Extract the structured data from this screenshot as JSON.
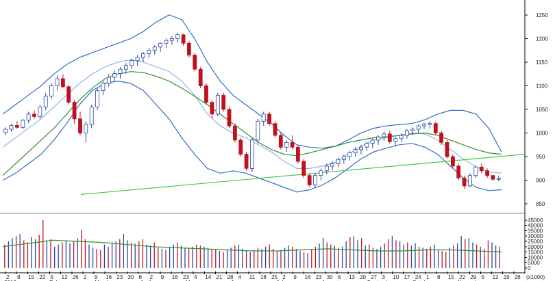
{
  "chart_data": [
    {
      "type": "candlestick",
      "title": "",
      "xlabel": "",
      "ylabel": "",
      "ylim": [
        830,
        1270
      ],
      "grid": false,
      "legend": "none",
      "price_ticks": [
        "850",
        "900",
        "950",
        "1000",
        "1050",
        "1100",
        "1150",
        "1200",
        "1250"
      ],
      "day_ticks": [
        "2",
        "8",
        "15",
        "22",
        "5",
        "12",
        "26",
        "2",
        "9",
        "16",
        "23",
        "30",
        "6",
        "2",
        "9",
        "16",
        "23",
        "4",
        "14",
        "21",
        "28",
        "4",
        "11",
        "18",
        "25",
        "2",
        "9",
        "16",
        "23",
        "30",
        "6",
        "13",
        "20",
        "27",
        "3",
        "10",
        "17",
        "24",
        "1",
        "8",
        "15",
        "22",
        "29",
        "5",
        "12",
        "19",
        "26"
      ],
      "month_labels": [
        "2018",
        "February",
        "March",
        "April",
        "May",
        "June",
        "July",
        "August",
        "September",
        "October",
        "November"
      ],
      "colors": {
        "up": "#2246a0",
        "down": "#c0121e",
        "bollinger_upper": "#2e6bc6",
        "bollinger_lower": "#2e6bc6",
        "bollinger_mid": "#7aa6e0",
        "moving_average": "#2f8f2f",
        "trendline": "#44c944"
      },
      "series": [
        {
          "role": "price",
          "ohlc": [
            [
              1001,
              1012,
              995,
              1008
            ],
            [
              1008,
              1020,
              1003,
              1016
            ],
            [
              1016,
              1025,
              1009,
              1012
            ],
            [
              1012,
              1030,
              1008,
              1027
            ],
            [
              1027,
              1045,
              1021,
              1040
            ],
            [
              1040,
              1048,
              1030,
              1035
            ],
            [
              1035,
              1060,
              1030,
              1055
            ],
            [
              1055,
              1085,
              1048,
              1078
            ],
            [
              1078,
              1105,
              1072,
              1100
            ],
            [
              1100,
              1122,
              1090,
              1115
            ],
            [
              1115,
              1125,
              1095,
              1098
            ],
            [
              1098,
              1102,
              1060,
              1065
            ],
            [
              1065,
              1070,
              1020,
              1030
            ],
            [
              1030,
              1045,
              995,
              1000
            ],
            [
              1000,
              1025,
              980,
              1018
            ],
            [
              1018,
              1060,
              1010,
              1055
            ],
            [
              1055,
              1095,
              1048,
              1090
            ],
            [
              1090,
              1110,
              1080,
              1105
            ],
            [
              1105,
              1125,
              1098,
              1118
            ],
            [
              1118,
              1132,
              1108,
              1126
            ],
            [
              1126,
              1140,
              1115,
              1135
            ],
            [
              1135,
              1148,
              1125,
              1143
            ],
            [
              1143,
              1158,
              1135,
              1153
            ],
            [
              1153,
              1165,
              1142,
              1160
            ],
            [
              1160,
              1172,
              1150,
              1168
            ],
            [
              1168,
              1180,
              1158,
              1175
            ],
            [
              1175,
              1186,
              1166,
              1182
            ],
            [
              1182,
              1192,
              1172,
              1190
            ],
            [
              1190,
              1200,
              1180,
              1196
            ],
            [
              1196,
              1205,
              1186,
              1200
            ],
            [
              1200,
              1212,
              1192,
              1208
            ],
            [
              1208,
              1210,
              1185,
              1190
            ],
            [
              1190,
              1195,
              1160,
              1165
            ],
            [
              1165,
              1170,
              1130,
              1135
            ],
            [
              1135,
              1140,
              1095,
              1100
            ],
            [
              1100,
              1105,
              1060,
              1065
            ],
            [
              1065,
              1070,
              1030,
              1040
            ],
            [
              1040,
              1085,
              1035,
              1080
            ],
            [
              1080,
              1085,
              1045,
              1050
            ],
            [
              1050,
              1055,
              1010,
              1015
            ],
            [
              1015,
              1020,
              980,
              985
            ],
            [
              985,
              990,
              950,
              955
            ],
            [
              955,
              960,
              920,
              925
            ],
            [
              925,
              990,
              918,
              985
            ],
            [
              985,
              1030,
              978,
              1025
            ],
            [
              1025,
              1045,
              1015,
              1040
            ],
            [
              1040,
              1045,
              1015,
              1020
            ],
            [
              1020,
              1025,
              990,
              995
            ],
            [
              995,
              1000,
              965,
              970
            ],
            [
              970,
              985,
              960,
              980
            ],
            [
              980,
              995,
              965,
              970
            ],
            [
              970,
              975,
              935,
              940
            ],
            [
              940,
              945,
              905,
              910
            ],
            [
              910,
              915,
              885,
              890
            ],
            [
              890,
              915,
              885,
              910
            ],
            [
              910,
              925,
              900,
              920
            ],
            [
              920,
              935,
              912,
              930
            ],
            [
              930,
              940,
              922,
              935
            ],
            [
              935,
              948,
              928,
              944
            ],
            [
              944,
              955,
              935,
              950
            ],
            [
              950,
              962,
              942,
              958
            ],
            [
              958,
              970,
              950,
              965
            ],
            [
              965,
              975,
              955,
              970
            ],
            [
              970,
              982,
              962,
              978
            ],
            [
              978,
              988,
              968,
              985
            ],
            [
              985,
              995,
              975,
              992
            ],
            [
              992,
              1003,
              983,
              998
            ],
            [
              998,
              1005,
              978,
              982
            ],
            [
              982,
              992,
              972,
              988
            ],
            [
              988,
              1000,
              980,
              995
            ],
            [
              995,
              1008,
              988,
              1005
            ],
            [
              1005,
              1012,
              995,
              1008
            ],
            [
              1008,
              1018,
              1000,
              1015
            ],
            [
              1015,
              1022,
              1008,
              1018
            ],
            [
              1018,
              1025,
              1010,
              1020
            ],
            [
              1020,
              1024,
              995,
              1000
            ],
            [
              1000,
              1005,
              975,
              980
            ],
            [
              980,
              985,
              945,
              950
            ],
            [
              950,
              955,
              925,
              930
            ],
            [
              930,
              935,
              900,
              905
            ],
            [
              905,
              910,
              882,
              888
            ],
            [
              888,
              915,
              885,
              910
            ],
            [
              910,
              932,
              905,
              928
            ],
            [
              928,
              935,
              915,
              920
            ],
            [
              920,
              925,
              905,
              910
            ],
            [
              910,
              912,
              898,
              902
            ],
            [
              902,
              910,
              898,
              904
            ]
          ]
        },
        {
          "role": "bollinger-upper",
          "values": [
            1040,
            1060,
            1080,
            1100,
            1125,
            1145,
            1160,
            1170,
            1180,
            1190,
            1200,
            1215,
            1235,
            1250,
            1240,
            1200,
            1150,
            1110,
            1080,
            1060,
            1040,
            1020,
            995,
            975,
            970,
            968,
            972,
            985,
            1000,
            1010,
            1015,
            1018,
            1020,
            1028,
            1040,
            1048,
            1048,
            1040,
            1010,
            960
          ]
        },
        {
          "role": "bollinger-lower",
          "values": [
            900,
            915,
            935,
            955,
            985,
            1020,
            1060,
            1090,
            1105,
            1110,
            1105,
            1090,
            1060,
            1030,
            990,
            955,
            925,
            915,
            920,
            915,
            905,
            895,
            885,
            875,
            880,
            890,
            905,
            925,
            945,
            960,
            968,
            975,
            978,
            970,
            955,
            930,
            905,
            885,
            878,
            880
          ]
        },
        {
          "role": "bollinger-middle",
          "values": [
            970,
            990,
            1010,
            1030,
            1055,
            1080,
            1105,
            1125,
            1140,
            1150,
            1155,
            1150,
            1140,
            1130,
            1110,
            1080,
            1040,
            1015,
            1000,
            990,
            975,
            960,
            940,
            925,
            925,
            930,
            938,
            955,
            972,
            985,
            990,
            995,
            1000,
            998,
            985,
            965,
            945,
            928,
            918,
            915
          ]
        },
        {
          "role": "moving-average",
          "values": [
            910,
            935,
            960,
            985,
            1010,
            1040,
            1070,
            1095,
            1115,
            1125,
            1130,
            1128,
            1120,
            1110,
            1095,
            1078,
            1060,
            1040,
            1020,
            1000,
            980,
            965,
            955,
            952,
            958,
            965,
            972,
            980,
            985,
            990,
            992,
            995,
            998,
            1000,
            995,
            985,
            975,
            965,
            958,
            955
          ]
        },
        {
          "role": "trendline",
          "values": [
            870,
            955
          ]
        }
      ]
    },
    {
      "type": "bar",
      "title": "",
      "volume_unit": "(x1000)",
      "ylim": [
        0,
        50000
      ],
      "ticks": [
        "0",
        "5000",
        "10000",
        "15000",
        "20000",
        "25000",
        "30000",
        "35000",
        "40000",
        "45000"
      ],
      "values": [
        22000,
        25000,
        28000,
        30000,
        32000,
        26000,
        24000,
        29000,
        27000,
        31000,
        45000,
        26000,
        27000,
        20000,
        22000,
        24000,
        26000,
        23000,
        25000,
        28000,
        36000,
        27000,
        22000,
        19000,
        18000,
        17000,
        22000,
        20000,
        24000,
        25000,
        27000,
        32000,
        26000,
        24000,
        23000,
        25000,
        27000,
        22000,
        21000,
        24000,
        19000,
        18000,
        17000,
        20000,
        22000,
        24000,
        21000,
        19000,
        18000,
        20000,
        22000,
        21000,
        20000,
        19000,
        18000,
        17000,
        16000,
        15000,
        17000,
        19000,
        21000,
        22000,
        18000,
        16000,
        15000,
        17000,
        19000,
        18000,
        20000,
        22000,
        18000,
        16000,
        17000,
        19000,
        21000,
        20000,
        18000,
        16000,
        15000,
        14000,
        18000,
        20000,
        23000,
        28000,
        24000,
        22000,
        21000,
        19000,
        20000,
        25000,
        29000,
        30000,
        26000,
        28000,
        21000,
        22000,
        19000,
        18000,
        20000,
        23000,
        27000,
        30000,
        26000,
        25000,
        22000,
        24000,
        21000,
        23000,
        20000,
        19000,
        18000,
        20000,
        22000,
        17000,
        16000,
        15000,
        19000,
        21000,
        23000,
        30000,
        27000,
        28000,
        24000,
        22000,
        20000,
        18000,
        26000,
        24000,
        21000,
        20000
      ],
      "average_line": [
        20000,
        23000,
        26000,
        25000,
        24000,
        22000,
        20000,
        19000,
        18000,
        17000,
        16000,
        16000,
        17000,
        18000,
        17000,
        16000,
        16000,
        17000,
        17000,
        16000,
        15000
      ]
    }
  ]
}
